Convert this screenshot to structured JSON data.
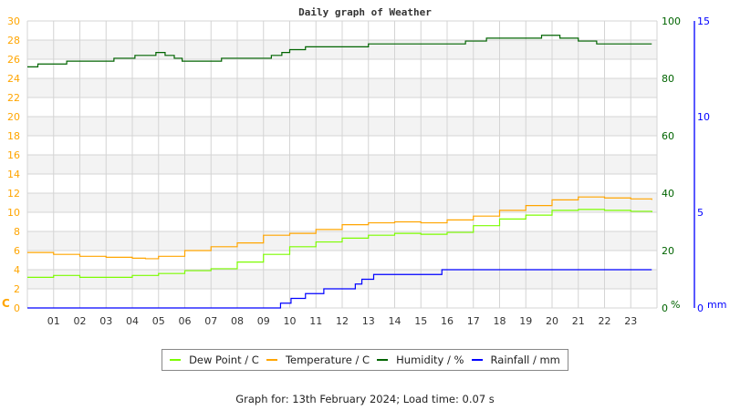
{
  "chart_data": {
    "type": "line",
    "title": "Daily graph of Weather",
    "x_unit": "hour",
    "x_ticks": [
      "01",
      "02",
      "03",
      "04",
      "05",
      "06",
      "07",
      "08",
      "09",
      "10",
      "11",
      "12",
      "13",
      "14",
      "15",
      "16",
      "17",
      "18",
      "19",
      "20",
      "21",
      "22",
      "23"
    ],
    "xlim": [
      0,
      24
    ],
    "grid": true,
    "legend_position": "bottom",
    "axes": {
      "left": {
        "label": "C",
        "ylim": [
          0,
          30
        ],
        "ticks": [
          0,
          2,
          4,
          6,
          8,
          10,
          12,
          14,
          16,
          18,
          20,
          22,
          24,
          26,
          28,
          30
        ],
        "color": "#ffa500"
      },
      "right_humidity": {
        "label": "%",
        "ylim": [
          0,
          100
        ],
        "ticks": [
          0,
          20,
          40,
          60,
          80,
          100
        ],
        "color": "#006400"
      },
      "right_rain": {
        "label": "mm",
        "ylim": [
          0,
          15
        ],
        "ticks": [
          0,
          5,
          10,
          15
        ],
        "color": "#0000ff"
      }
    },
    "series": [
      {
        "name": "Dew Point / C",
        "axis": "left",
        "color": "#7cfc00",
        "x": [
          0,
          1,
          2,
          3,
          4,
          5,
          6,
          7,
          8,
          9,
          10,
          11,
          12,
          13,
          14,
          15,
          16,
          17,
          18,
          19,
          20,
          21,
          22,
          23,
          23.8
        ],
        "y": [
          3.2,
          3.4,
          3.2,
          3.2,
          3.4,
          3.6,
          3.9,
          4.1,
          4.8,
          5.6,
          6.4,
          6.9,
          7.3,
          7.6,
          7.8,
          7.7,
          7.9,
          8.6,
          9.3,
          9.7,
          10.2,
          10.3,
          10.2,
          10.1,
          10.0
        ]
      },
      {
        "name": "Temperature / C",
        "axis": "left",
        "color": "#ffa500",
        "x": [
          0,
          1,
          2,
          3,
          4,
          4.5,
          5,
          6,
          7,
          8,
          9,
          10,
          11,
          12,
          13,
          14,
          15,
          16,
          17,
          18,
          19,
          20,
          21,
          22,
          23,
          23.8
        ],
        "y": [
          5.8,
          5.6,
          5.4,
          5.3,
          5.2,
          5.15,
          5.4,
          6.0,
          6.4,
          6.8,
          7.6,
          7.8,
          8.2,
          8.7,
          8.9,
          9.0,
          8.9,
          9.2,
          9.6,
          10.2,
          10.7,
          11.3,
          11.6,
          11.5,
          11.4,
          11.3
        ]
      },
      {
        "name": "Humidity / %",
        "axis": "right_humidity",
        "color": "#006400",
        "x": [
          0,
          0.4,
          1.5,
          3.3,
          4.1,
          4.9,
          5.25,
          5.6,
          5.9,
          7.4,
          9.3,
          9.7,
          10.0,
          10.6,
          13.0,
          16.7,
          17.5,
          19.6,
          20.3,
          21.0,
          21.7,
          23.8
        ],
        "y": [
          84,
          85,
          86,
          87,
          88,
          89,
          88,
          87,
          86,
          87,
          88,
          89,
          90,
          91,
          92,
          93,
          94,
          95,
          94,
          93,
          92,
          92
        ]
      },
      {
        "name": "Rainfall / mm",
        "axis": "right_rain",
        "color": "#0000ff",
        "x": [
          0,
          9.65,
          10.05,
          10.6,
          11.3,
          12.5,
          12.75,
          13.2,
          15.8,
          23.8
        ],
        "y": [
          0,
          0.25,
          0.5,
          0.75,
          1.0,
          1.25,
          1.5,
          1.75,
          2.0,
          2.0
        ]
      }
    ]
  },
  "footer": "Graph for: 13th February 2024; Load time: 0.07 s"
}
